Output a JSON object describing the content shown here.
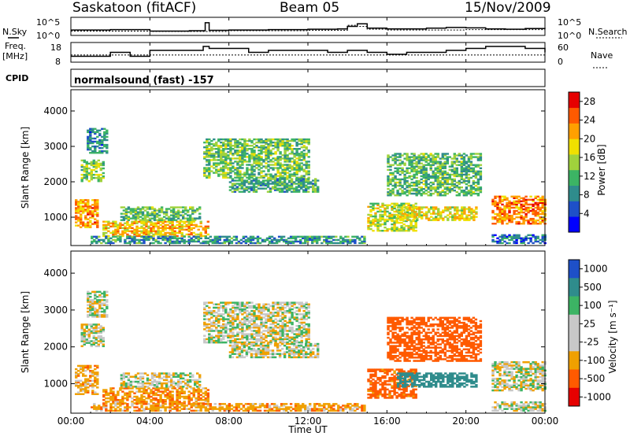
{
  "header": {
    "station": "Saskatoon (fitACF)",
    "beam": "Beam 05",
    "date": "15/Nov/2009"
  },
  "summary_panel": {
    "nsky_label": "N.Sky",
    "nsearch_label": "N.Search",
    "nsky_ticks": [
      "10^5",
      "10^0"
    ],
    "nsearch_ticks": [
      "10^5",
      "10^0"
    ],
    "freq_label": "Freq.",
    "freq_unit": "[MHz]",
    "freq_ticks": [
      "18",
      "8"
    ],
    "nave_label": "Nave",
    "nave_ticks": [
      "60",
      "0"
    ],
    "cpid_label": "CPID",
    "cpid_value": "normalsound (fast) -157"
  },
  "chart_data": [
    {
      "type": "line",
      "name": "noise",
      "series": [
        {
          "key": "nsky",
          "style": "solid",
          "x": [
            0,
            2,
            4,
            6,
            6.8,
            7,
            8,
            10,
            12,
            13.5,
            14,
            14.5,
            15,
            16,
            18,
            19,
            20,
            21,
            22,
            23,
            24
          ],
          "y": [
            1.5,
            1.6,
            1.2,
            1.3,
            3.5,
            1.4,
            1.5,
            1.6,
            1.7,
            1.8,
            2.5,
            3.2,
            2.0,
            1.8,
            2.0,
            2.2,
            2.1,
            1.8,
            1.7,
            1.9,
            1.8
          ]
        },
        {
          "key": "nsearch",
          "style": "dotted",
          "x": [
            0,
            4,
            8,
            12,
            14,
            14.5,
            15,
            16,
            20,
            24
          ],
          "y": [
            1.2,
            1.1,
            1.3,
            1.4,
            2.8,
            2.5,
            1.7,
            1.5,
            1.6,
            1.5
          ]
        }
      ],
      "xlim": [
        0,
        24
      ],
      "ylim": [
        0,
        5
      ]
    },
    {
      "type": "line",
      "name": "frequency_nave",
      "series": [
        {
          "key": "freq",
          "style": "solid",
          "x": [
            0,
            2,
            3,
            4,
            6,
            6.7,
            7,
            8,
            9,
            10,
            11,
            12,
            13,
            14,
            14.5,
            15,
            16,
            17,
            18,
            19,
            20,
            21,
            22,
            23,
            24
          ],
          "y": [
            11,
            13,
            11,
            14,
            14,
            16,
            15,
            15,
            13,
            14,
            14,
            14,
            13,
            14,
            14,
            13,
            12,
            13,
            13,
            14,
            15,
            16,
            16,
            15,
            13
          ]
        },
        {
          "key": "nave",
          "style": "dotted",
          "x": [
            0,
            24
          ],
          "y": [
            22,
            22
          ]
        }
      ],
      "xlim": [
        0,
        24
      ],
      "ylim": [
        8,
        18
      ],
      "y2lim": [
        0,
        60
      ]
    },
    {
      "type": "heatmap",
      "name": "power",
      "ylabel": "Slant Range [km]",
      "yticks": [
        "1000",
        "2000",
        "3000",
        "4000"
      ],
      "ylim": [
        200,
        4600
      ],
      "xlim": [
        0,
        24
      ],
      "colorbar": {
        "label": "Power [dB]",
        "ticks": [
          "4",
          "8",
          "12",
          "16",
          "20",
          "24",
          "28"
        ],
        "range": [
          0,
          30
        ],
        "colors": [
          "#0000ff",
          "#1e50c8",
          "#2f8c8c",
          "#3cb464",
          "#a0d23c",
          "#f0e000",
          "#ffa000",
          "#ff5a00",
          "#e60000"
        ]
      },
      "regions": [
        {
          "t0": 0.2,
          "t1": 1.3,
          "r0": 700,
          "r1": 1500,
          "v": 22
        },
        {
          "t0": 0.5,
          "t1": 1.6,
          "r0": 2000,
          "r1": 2600,
          "v": 14
        },
        {
          "t0": 0.8,
          "t1": 1.8,
          "r0": 2800,
          "r1": 3500,
          "v": 8
        },
        {
          "t0": 1.6,
          "t1": 7.0,
          "r0": 450,
          "r1": 900,
          "v": 20
        },
        {
          "t0": 2.5,
          "t1": 6.5,
          "r0": 900,
          "r1": 1300,
          "v": 12
        },
        {
          "t0": 6.7,
          "t1": 12.0,
          "r0": 2100,
          "r1": 3200,
          "v": 13
        },
        {
          "t0": 8.0,
          "t1": 12.5,
          "r0": 1700,
          "r1": 2100,
          "v": 11
        },
        {
          "t0": 1.0,
          "t1": 14.8,
          "r0": 250,
          "r1": 450,
          "v": 9
        },
        {
          "t0": 15.0,
          "t1": 17.5,
          "r0": 600,
          "r1": 1400,
          "v": 16
        },
        {
          "t0": 16.5,
          "t1": 20.5,
          "r0": 900,
          "r1": 1300,
          "v": 18
        },
        {
          "t0": 16.0,
          "t1": 20.8,
          "r0": 1600,
          "r1": 2800,
          "v": 12
        },
        {
          "t0": 21.3,
          "t1": 24.0,
          "r0": 800,
          "r1": 1600,
          "v": 23
        },
        {
          "t0": 21.3,
          "t1": 24.0,
          "r0": 250,
          "r1": 500,
          "v": 7
        }
      ]
    },
    {
      "type": "heatmap",
      "name": "velocity",
      "ylabel": "Slant Range [km]",
      "yticks": [
        "1000",
        "2000",
        "3000",
        "4000"
      ],
      "ylim": [
        200,
        4600
      ],
      "xlim": [
        0,
        24
      ],
      "colorbar": {
        "label": "Velocity [m s⁻¹]",
        "ticks": [
          "1000",
          "500",
          "100",
          "25",
          "-25",
          "-100",
          "-500",
          "-1000"
        ],
        "colors": [
          "#1e50c8",
          "#2f8c8c",
          "#3cb464",
          "#c8c8c8",
          "#c8c8c8",
          "#f0a000",
          "#ff5a00",
          "#e60000"
        ]
      },
      "regions": [
        {
          "t0": 0.2,
          "t1": 1.3,
          "r0": 700,
          "r1": 1500,
          "v": -60
        },
        {
          "t0": 0.5,
          "t1": 1.6,
          "r0": 2000,
          "r1": 2600,
          "v": 0
        },
        {
          "t0": 0.8,
          "t1": 1.8,
          "r0": 2800,
          "r1": 3500,
          "v": 0
        },
        {
          "t0": 1.6,
          "t1": 7.0,
          "r0": 450,
          "r1": 900,
          "v": -80
        },
        {
          "t0": 2.5,
          "t1": 6.5,
          "r0": 900,
          "r1": 1300,
          "v": 0
        },
        {
          "t0": 6.7,
          "t1": 12.0,
          "r0": 2100,
          "r1": 3200,
          "v": 0
        },
        {
          "t0": 8.0,
          "t1": 12.5,
          "r0": 1700,
          "r1": 2100,
          "v": 0
        },
        {
          "t0": 1.0,
          "t1": 14.8,
          "r0": 250,
          "r1": 450,
          "v": -70
        },
        {
          "t0": 15.0,
          "t1": 17.5,
          "r0": 600,
          "r1": 1400,
          "v": -150
        },
        {
          "t0": 16.5,
          "t1": 20.5,
          "r0": 900,
          "r1": 1300,
          "v": 200
        },
        {
          "t0": 16.0,
          "t1": 20.8,
          "r0": 1600,
          "r1": 2800,
          "v": -300
        },
        {
          "t0": 21.3,
          "t1": 24.0,
          "r0": 800,
          "r1": 1600,
          "v": 0
        },
        {
          "t0": 21.3,
          "t1": 24.0,
          "r0": 250,
          "r1": 500,
          "v": 0
        }
      ]
    }
  ],
  "time_axis": {
    "label": "Time UT",
    "ticks": [
      "00:00",
      "04:00",
      "08:00",
      "12:00",
      "16:00",
      "20:00",
      "00:00"
    ]
  }
}
